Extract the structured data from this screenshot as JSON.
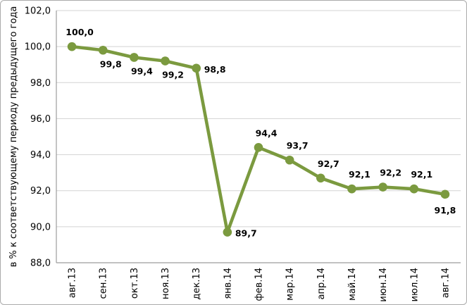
{
  "figure": {
    "background": "#FFFFFF",
    "border_color": "#ABABAB"
  },
  "chart_data": {
    "type": "line",
    "title": "",
    "xlabel": "",
    "ylabel": "в % к соответствующему периоду предыдущего года",
    "categories": [
      "авг.13",
      "сен.13",
      "окт.13",
      "ноя.13",
      "дек.13",
      "янв.14",
      "фев.14",
      "мар.14",
      "апр.14",
      "май.14",
      "июн.14",
      "июл.14",
      "авг.14"
    ],
    "series": [
      {
        "name": "",
        "values": [
          100.0,
          99.8,
          99.4,
          99.2,
          98.8,
          89.7,
          94.4,
          93.7,
          92.7,
          92.1,
          92.2,
          92.1,
          91.8
        ],
        "color": "#7B9A3F"
      }
    ],
    "data_labels": [
      "100,0",
      "99,8",
      "99,4",
      "99,2",
      "98,8",
      "89,7",
      "94,4",
      "93,7",
      "92,7",
      "92,1",
      "92,2",
      "92,1",
      "91,8"
    ],
    "label_positions": [
      "above",
      "below",
      "below",
      "below",
      "right",
      "right",
      "above",
      "above",
      "above",
      "above",
      "above",
      "above",
      "below-center"
    ],
    "ylim": [
      88,
      102
    ],
    "ytick_step": 2,
    "ytick_labels": [
      "88,0",
      "90,0",
      "92,0",
      "94,0",
      "96,0",
      "98,0",
      "100,0",
      "102,0"
    ],
    "grid": true,
    "legend": "none",
    "gridline_color": "#D3D3D3",
    "axis_color": "#9C9C9C",
    "text_color": "#000000",
    "data_label_color": "#000000"
  }
}
